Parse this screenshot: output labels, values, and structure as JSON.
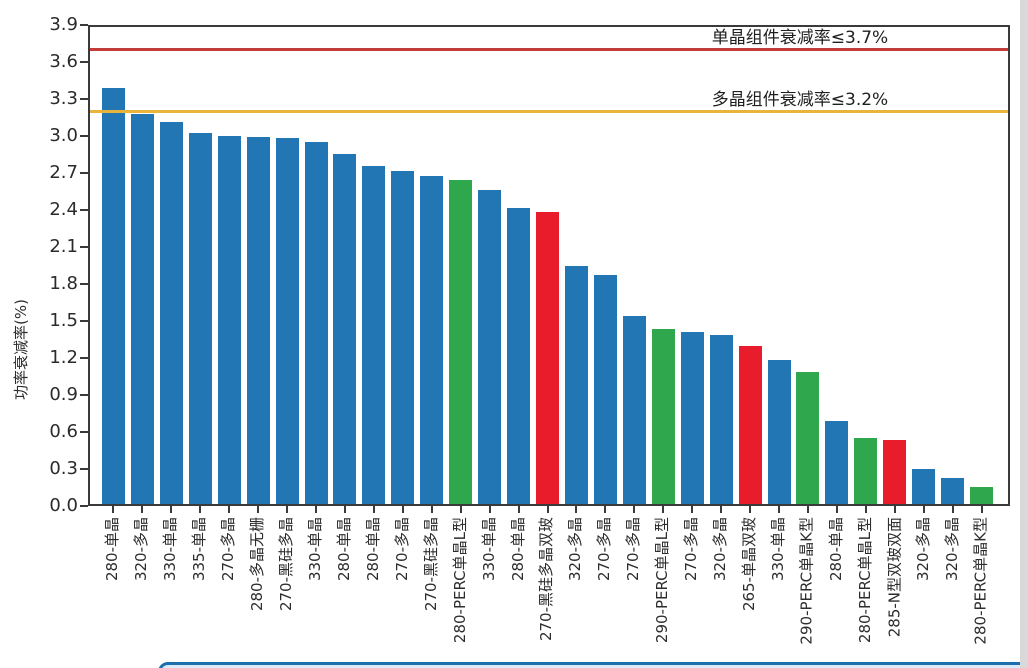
{
  "chart_data": {
    "type": "bar",
    "title": "",
    "xlabel": "",
    "ylabel": "功率衰减率(%)",
    "ylim": [
      0,
      3.9
    ],
    "grid": false,
    "y_ticks": [
      "0.0",
      "0.3",
      "0.6",
      "0.9",
      "1.2",
      "1.5",
      "1.8",
      "2.1",
      "2.4",
      "2.7",
      "3.0",
      "3.3",
      "3.6",
      "3.9"
    ],
    "categories": [
      "280-单晶",
      "320-多晶",
      "330-单晶",
      "335-单晶",
      "270-多晶",
      "280-多晶无栅",
      "270-黑硅多晶",
      "330-单晶",
      "280-单晶",
      "280-单晶",
      "270-多晶",
      "270-黑硅多晶",
      "280-PERC单晶L型",
      "330-单晶",
      "280-单晶",
      "270-黑硅多晶双玻",
      "320-多晶",
      "270-多晶",
      "270-多晶",
      "290-PERC单晶L型",
      "270-多晶",
      "320-多晶",
      "265-单晶双玻",
      "330-单晶",
      "290-PERC单晶K型",
      "280-单晶",
      "280-PERC单晶L型",
      "285-N型双玻双面",
      "320-多晶",
      "320-多晶",
      "280-PERC单晶K型"
    ],
    "values": [
      3.4,
      3.19,
      3.12,
      3.03,
      3.01,
      3.0,
      2.99,
      2.96,
      2.86,
      2.76,
      2.72,
      2.68,
      2.65,
      2.57,
      2.42,
      2.39,
      1.95,
      1.87,
      1.54,
      1.43,
      1.41,
      1.38,
      1.29,
      1.18,
      1.08,
      0.68,
      0.54,
      0.52,
      0.29,
      0.21,
      0.14
    ],
    "bar_colors": [
      "blue",
      "blue",
      "blue",
      "blue",
      "blue",
      "blue",
      "blue",
      "blue",
      "blue",
      "blue",
      "blue",
      "blue",
      "green",
      "blue",
      "blue",
      "red",
      "blue",
      "blue",
      "blue",
      "green",
      "blue",
      "blue",
      "red",
      "blue",
      "green",
      "blue",
      "green",
      "red",
      "blue",
      "blue",
      "green"
    ],
    "color_map": {
      "blue": "#2276b4",
      "green": "#2fa84d",
      "red": "#e91c2c"
    },
    "reference_lines": [
      {
        "label": "单晶组件衰减率≤3.7%",
        "value": 3.7,
        "color": "#c43b3b"
      },
      {
        "label": "多晶组件衰减率≤3.2%",
        "value": 3.2,
        "color": "#e9b43c"
      }
    ],
    "legend_position": "none"
  },
  "spine_color": "#3a3a3a",
  "background_color": "#ffffff",
  "banner": {
    "border_color": "#1e6fae",
    "fill_color": "#dceaf7"
  }
}
